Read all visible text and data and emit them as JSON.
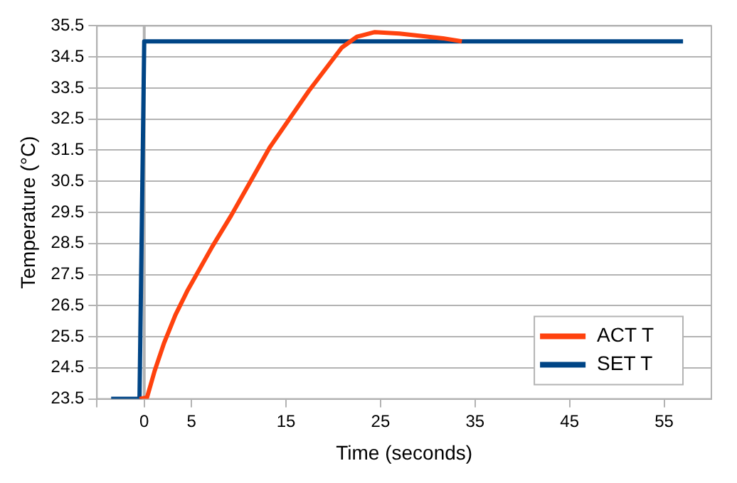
{
  "chart_data": {
    "type": "line",
    "xlabel": "Time (seconds)",
    "ylabel": "Temperature (°C)",
    "xlim": [
      -5,
      60
    ],
    "xticks": [
      {
        "value": -5,
        "label": null
      },
      0,
      5,
      15,
      25,
      35,
      45,
      55
    ],
    "ylim": [
      23.5,
      35.5
    ],
    "yticks": [
      23.5,
      24.5,
      25.5,
      26.5,
      27.5,
      28.5,
      29.5,
      30.5,
      31.5,
      32.5,
      33.5,
      34.5,
      35.5
    ],
    "grid": "y",
    "legend": "bottom right",
    "marker": "none",
    "line_style": "solid",
    "ref_lines": [
      {
        "axis": "x",
        "value": 0,
        "color": "#b3b3b3"
      }
    ],
    "series": [
      {
        "name": "ACT T",
        "color": "#ff420e",
        "x": [
          -0.5,
          0.3,
          1.1,
          2.1,
          3.3,
          4.6,
          7.2,
          9.2,
          13.3,
          17.4,
          20.9,
          22.5,
          24.4,
          27,
          31.6,
          33.6
        ],
        "values": [
          23.5,
          23.55,
          24.4,
          25.3,
          26.2,
          27.0,
          28.4,
          29.4,
          31.6,
          33.4,
          34.8,
          35.15,
          35.3,
          35.25,
          35.1,
          35.0
        ]
      },
      {
        "name": "SET T",
        "color": "#004586",
        "x": [
          -3.5,
          -0.5,
          0,
          57
        ],
        "values": [
          23.5,
          23.5,
          35,
          35
        ]
      }
    ]
  }
}
